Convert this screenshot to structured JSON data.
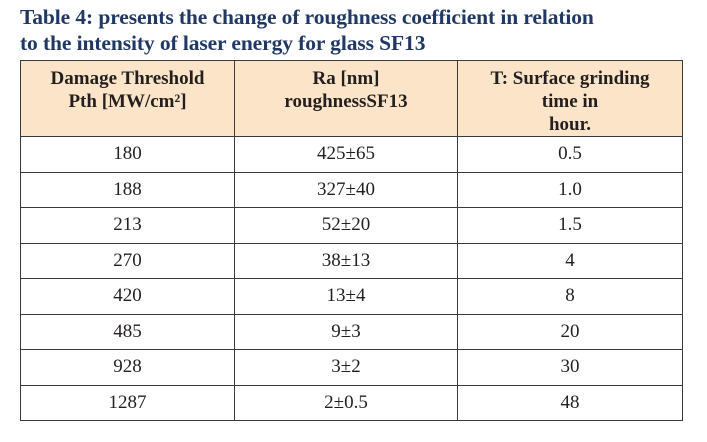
{
  "caption": {
    "line1": "Table 4: presents the change of roughness coefficient in relation",
    "line2": "to the intensity of laser energy for glass SF13"
  },
  "table": {
    "headers": [
      {
        "lines": [
          "Damage Threshold",
          "Pth [MW/cm²]"
        ]
      },
      {
        "lines": [
          "Ra [nm]",
          "roughnessSF13"
        ]
      },
      {
        "lines": [
          "T: Surface grinding",
          "time in",
          "hour."
        ]
      }
    ],
    "rows": [
      [
        "180",
        "425±65",
        "0.5"
      ],
      [
        "188",
        "327±40",
        "1.0"
      ],
      [
        "213",
        "52±20",
        "1.5"
      ],
      [
        "270",
        "38±13",
        "4"
      ],
      [
        "420",
        "13±4",
        "8"
      ],
      [
        "485",
        "9±3",
        "20"
      ],
      [
        "928",
        "3±2",
        "30"
      ],
      [
        "1287",
        "2±0.5",
        "48"
      ]
    ]
  }
}
